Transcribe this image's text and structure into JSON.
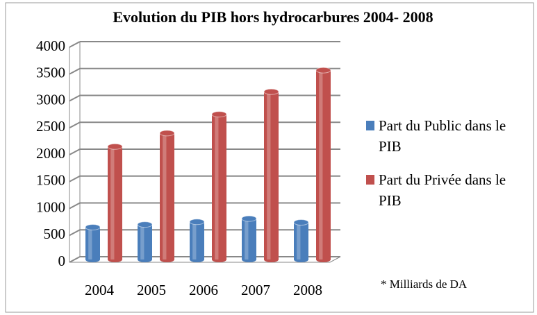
{
  "chart_data": {
    "type": "bar",
    "title": "Evolution du PIB hors hydrocarbures 2004- 2008",
    "categories": [
      "2004",
      "2005",
      "2006",
      "2007",
      "2008"
    ],
    "series": [
      {
        "name": "Part du Public dans le PIB",
        "color": "#4a7ebb",
        "values": [
          600,
          650,
          700,
          760,
          690
        ]
      },
      {
        "name": "Part du Privée dans le PIB",
        "color": "#c0504d",
        "values": [
          2100,
          2350,
          2700,
          3120,
          3520
        ]
      }
    ],
    "ylim": [
      0,
      4000
    ],
    "yticks": [
      0,
      500,
      1000,
      1500,
      2000,
      2500,
      3000,
      3500,
      4000
    ],
    "grid": true,
    "annotation": "* Milliards de DA"
  }
}
